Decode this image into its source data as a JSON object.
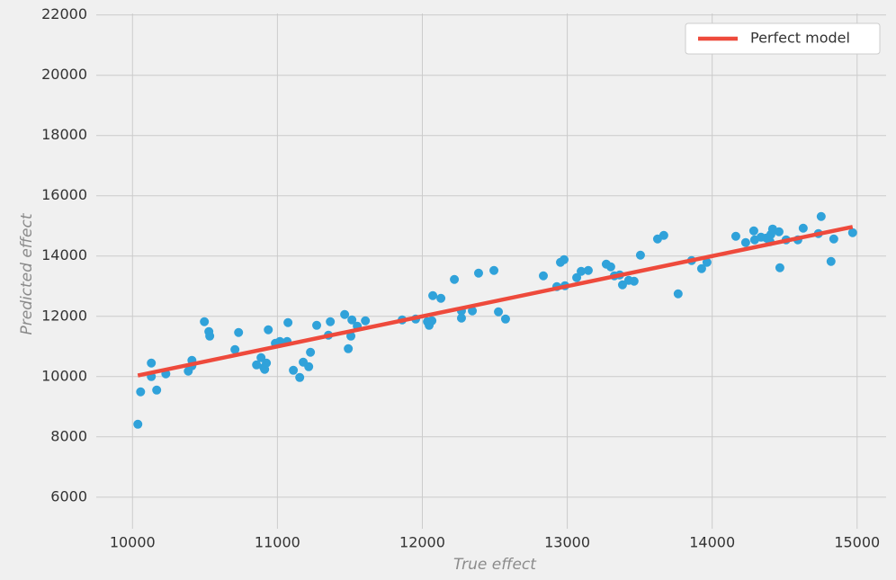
{
  "chart_data": {
    "type": "scatter",
    "x_label": "True effect",
    "y_label": "Predicted effect",
    "xlim": [
      9750,
      15200
    ],
    "ylim": [
      4950,
      22050
    ],
    "xticks": [
      10000,
      11000,
      12000,
      13000,
      14000,
      15000
    ],
    "yticks": [
      6000,
      8000,
      10000,
      12000,
      14000,
      16000,
      18000,
      20000,
      22000
    ],
    "grid": true,
    "legend": "upper right",
    "series": [
      {
        "type": "scatter",
        "color": "#30a2da",
        "x": [
          10037,
          10056,
          10130,
          10130,
          10167,
          10230,
          10385,
          10410,
          10410,
          10496,
          10527,
          10533,
          10707,
          10732,
          10856,
          10887,
          10906,
          10924,
          10912,
          10937,
          10986,
          11017,
          11067,
          11073,
          11110,
          11154,
          11178,
          11216,
          11228,
          11271,
          11365,
          11352,
          11464,
          11489,
          11507,
          11514,
          11551,
          11607,
          11861,
          11954,
          12035,
          12047,
          12066,
          12072,
          12128,
          12221,
          12270,
          12270,
          12345,
          12388,
          12494,
          12525,
          12574,
          12835,
          12928,
          12953,
          12978,
          12984,
          13065,
          13096,
          13145,
          13269,
          13300,
          13325,
          13362,
          13381,
          13424,
          13461,
          13505,
          13623,
          13666,
          13765,
          13858,
          13927,
          13964,
          14163,
          14231,
          14287,
          14293,
          14337,
          14374,
          14399,
          14405,
          14417,
          14461,
          14467,
          14510,
          14591,
          14628,
          14733,
          14752,
          14820,
          14839,
          14969
        ],
        "values": [
          8418,
          9493,
          10448,
          10000,
          9552,
          10090,
          10180,
          10537,
          10358,
          11821,
          11493,
          11343,
          10896,
          11463,
          10388,
          10627,
          10299,
          10448,
          10239,
          11552,
          11104,
          11164,
          11164,
          11791,
          10209,
          9970,
          10478,
          10328,
          10806,
          11701,
          11821,
          11373,
          12060,
          10925,
          11343,
          11881,
          11672,
          11851,
          11881,
          11910,
          11821,
          11701,
          11851,
          12687,
          12597,
          13224,
          12179,
          11940,
          12179,
          13433,
          13522,
          12149,
          11910,
          13343,
          12985,
          13791,
          13881,
          13015,
          13284,
          13493,
          13522,
          13731,
          13642,
          13343,
          13373,
          13045,
          13194,
          13164,
          14030,
          14567,
          14687,
          12746,
          13851,
          13582,
          13791,
          14657,
          14448,
          14836,
          14537,
          14627,
          14597,
          14478,
          14716,
          14896,
          14806,
          13612,
          14537,
          14537,
          14925,
          14746,
          15313,
          13821,
          14567,
          14776
        ]
      },
      {
        "type": "line",
        "name": "Perfect model",
        "color": "#ee4a3c",
        "x": [
          10037,
          14969
        ],
        "values": [
          10037,
          14969
        ]
      }
    ]
  }
}
